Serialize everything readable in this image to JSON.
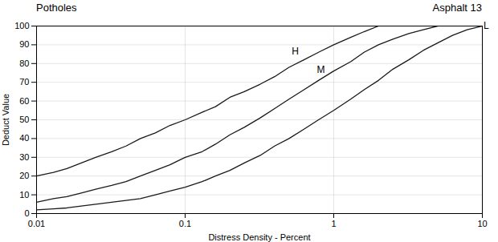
{
  "chart_data": {
    "type": "line",
    "title": "Potholes",
    "subtitle": "Asphalt 13",
    "xlabel": "Distress Density - Percent",
    "ylabel": "Deduct Value",
    "log": "x",
    "grid": true,
    "xlim": [
      0.01,
      10
    ],
    "ylim": [
      0,
      100
    ],
    "xticks": [
      0.01,
      0.1,
      1,
      10
    ],
    "yticks": [
      0,
      10,
      20,
      30,
      40,
      50,
      60,
      70,
      80,
      90,
      100
    ],
    "series": [
      {
        "name": "H",
        "color": "#1a1a1a",
        "x": [
          0.01,
          0.013,
          0.016,
          0.02,
          0.025,
          0.032,
          0.04,
          0.05,
          0.063,
          0.079,
          0.1,
          0.13,
          0.16,
          0.2,
          0.25,
          0.32,
          0.4,
          0.5,
          0.63,
          0.79,
          1.0,
          1.3,
          1.6,
          2.0
        ],
        "values": [
          20,
          22,
          24,
          27,
          30,
          33,
          36,
          40,
          43,
          47,
          50,
          54,
          57,
          62,
          65,
          69,
          73,
          78,
          82,
          86,
          90,
          94,
          97,
          100
        ]
      },
      {
        "name": "M",
        "color": "#1a1a1a",
        "x": [
          0.01,
          0.013,
          0.016,
          0.02,
          0.025,
          0.032,
          0.04,
          0.05,
          0.063,
          0.079,
          0.1,
          0.13,
          0.16,
          0.2,
          0.25,
          0.32,
          0.4,
          0.5,
          0.63,
          0.79,
          1.0,
          1.3,
          1.6,
          2.0,
          2.5,
          3.2,
          4.0,
          5.0
        ],
        "values": [
          6,
          8,
          9,
          11,
          13,
          15,
          17,
          20,
          23,
          26,
          30,
          33,
          37,
          42,
          46,
          51,
          56,
          61,
          66,
          71,
          76,
          81,
          86,
          90,
          93,
          96,
          98,
          100
        ]
      },
      {
        "name": "L",
        "color": "#1a1a1a",
        "x": [
          0.01,
          0.013,
          0.016,
          0.02,
          0.025,
          0.032,
          0.04,
          0.05,
          0.063,
          0.079,
          0.1,
          0.13,
          0.16,
          0.2,
          0.25,
          0.32,
          0.4,
          0.5,
          0.63,
          0.79,
          1.0,
          1.3,
          1.6,
          2.0,
          2.5,
          3.2,
          4.0,
          5.0,
          6.3,
          7.9,
          10.0
        ],
        "values": [
          2,
          2.5,
          3,
          4,
          5,
          6,
          7,
          8,
          10,
          12,
          14,
          17,
          20,
          23,
          27,
          31,
          36,
          40,
          45,
          50,
          55,
          61,
          66,
          71,
          77,
          82,
          87,
          91,
          95,
          98,
          100
        ]
      }
    ],
    "annotations": [
      {
        "text": "H",
        "x": 0.55,
        "y": 84
      },
      {
        "text": "M",
        "x": 0.82,
        "y": 74
      },
      {
        "text": "L",
        "x": 10.2,
        "y": 100
      }
    ]
  }
}
